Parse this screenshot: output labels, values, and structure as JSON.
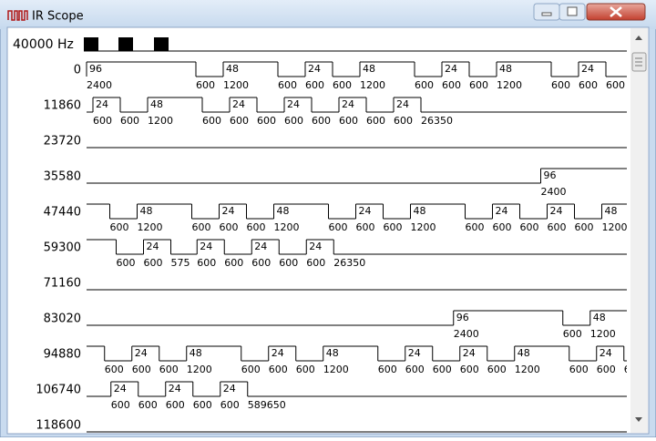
{
  "window": {
    "title": "IR Scope"
  },
  "frequency": "40000 Hz",
  "row_starts": [
    0,
    11860,
    23720,
    35580,
    47440,
    59300,
    71160,
    83020,
    94880,
    106740,
    118600
  ],
  "segments": [
    {
      "level": "high",
      "duration": 2400,
      "cycles": 96
    },
    {
      "level": "low",
      "duration": 600
    },
    {
      "level": "high",
      "duration": 1200,
      "cycles": 48
    },
    {
      "level": "low",
      "duration": 600
    },
    {
      "level": "high",
      "duration": 600,
      "cycles": 24
    },
    {
      "level": "low",
      "duration": 600
    },
    {
      "level": "high",
      "duration": 1200,
      "cycles": 48
    },
    {
      "level": "low",
      "duration": 600
    },
    {
      "level": "high",
      "duration": 600,
      "cycles": 24
    },
    {
      "level": "low",
      "duration": 600
    },
    {
      "level": "high",
      "duration": 1200,
      "cycles": 48
    },
    {
      "level": "low",
      "duration": 600
    },
    {
      "level": "high",
      "duration": 600,
      "cycles": 24
    },
    {
      "level": "low",
      "duration": 600
    },
    {
      "level": "high",
      "duration": 600,
      "cycles": 24
    },
    {
      "level": "low",
      "duration": 600
    },
    {
      "level": "high",
      "duration": 1200,
      "cycles": 48
    },
    {
      "level": "low",
      "duration": 600
    },
    {
      "level": "high",
      "duration": 600,
      "cycles": 24
    },
    {
      "level": "low",
      "duration": 600
    },
    {
      "level": "high",
      "duration": 600,
      "cycles": 24
    },
    {
      "level": "low",
      "duration": 600
    },
    {
      "level": "high",
      "duration": 600,
      "cycles": 24
    },
    {
      "level": "low",
      "duration": 600
    },
    {
      "level": "high",
      "duration": 600,
      "cycles": 24
    },
    {
      "level": "low",
      "duration": 26350
    },
    {
      "level": "high",
      "duration": 2400,
      "cycles": 96
    },
    {
      "level": "low",
      "duration": 600
    },
    {
      "level": "high",
      "duration": 1200,
      "cycles": 48
    },
    {
      "level": "low",
      "duration": 600
    },
    {
      "level": "high",
      "duration": 600,
      "cycles": 24
    },
    {
      "level": "low",
      "duration": 600
    },
    {
      "level": "high",
      "duration": 1200,
      "cycles": 48
    },
    {
      "level": "low",
      "duration": 600
    },
    {
      "level": "high",
      "duration": 600,
      "cycles": 24
    },
    {
      "level": "low",
      "duration": 600
    },
    {
      "level": "high",
      "duration": 1200,
      "cycles": 48
    },
    {
      "level": "low",
      "duration": 600
    },
    {
      "level": "high",
      "duration": 600,
      "cycles": 24
    },
    {
      "level": "low",
      "duration": 600
    },
    {
      "level": "high",
      "duration": 600,
      "cycles": 24
    },
    {
      "level": "low",
      "duration": 600
    },
    {
      "level": "high",
      "duration": 1200,
      "cycles": 48
    },
    {
      "level": "low",
      "duration": 600
    },
    {
      "level": "high",
      "duration": 600,
      "cycles": 24
    },
    {
      "level": "low",
      "duration": 575
    },
    {
      "level": "high",
      "duration": 600,
      "cycles": 24
    },
    {
      "level": "low",
      "duration": 600
    },
    {
      "level": "high",
      "duration": 600,
      "cycles": 24
    },
    {
      "level": "low",
      "duration": 600
    },
    {
      "level": "high",
      "duration": 600,
      "cycles": 24
    },
    {
      "level": "low",
      "duration": 26350
    },
    {
      "level": "high",
      "duration": 2400,
      "cycles": 96
    },
    {
      "level": "low",
      "duration": 600
    },
    {
      "level": "high",
      "duration": 1200,
      "cycles": 48
    },
    {
      "level": "low",
      "duration": 600
    },
    {
      "level": "high",
      "duration": 600,
      "cycles": 24
    },
    {
      "level": "low",
      "duration": 600
    },
    {
      "level": "high",
      "duration": 1200,
      "cycles": 48
    },
    {
      "level": "low",
      "duration": 600
    },
    {
      "level": "high",
      "duration": 600,
      "cycles": 24
    },
    {
      "level": "low",
      "duration": 600
    },
    {
      "level": "high",
      "duration": 1200,
      "cycles": 48
    },
    {
      "level": "low",
      "duration": 600
    },
    {
      "level": "high",
      "duration": 600,
      "cycles": 24
    },
    {
      "level": "low",
      "duration": 600
    },
    {
      "level": "high",
      "duration": 600,
      "cycles": 24
    },
    {
      "level": "low",
      "duration": 600
    },
    {
      "level": "high",
      "duration": 1200,
      "cycles": 48
    },
    {
      "level": "low",
      "duration": 600
    },
    {
      "level": "high",
      "duration": 600,
      "cycles": 24
    },
    {
      "level": "low",
      "duration": 600
    },
    {
      "level": "high",
      "duration": 600,
      "cycles": 24
    },
    {
      "level": "low",
      "duration": 600
    },
    {
      "level": "high",
      "duration": 600,
      "cycles": 24
    },
    {
      "level": "low",
      "duration": 600
    },
    {
      "level": "high",
      "duration": 600,
      "cycles": 24
    },
    {
      "level": "low",
      "duration": 589650
    }
  ]
}
